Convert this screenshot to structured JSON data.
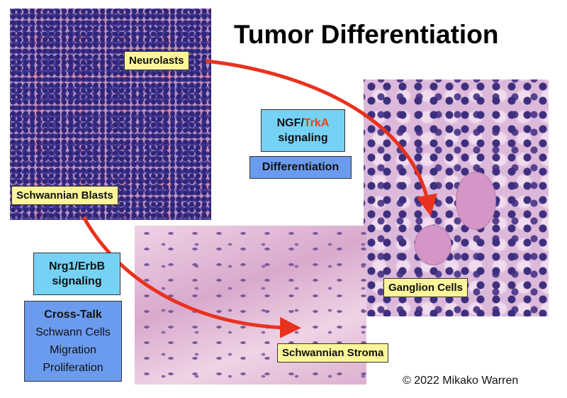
{
  "title": "Tumor Differentiation",
  "labels": {
    "neuroblasts": "Neurolasts",
    "schwannian_blasts": "Schwannian Blasts",
    "ganglion_cells": "Ganglion Cells",
    "schwannian_stroma": "Schwannian Stroma"
  },
  "ngf_box": {
    "part1": "NGF/",
    "part2": "TrkA",
    "line2": "signaling",
    "part2_color": "#e8401c"
  },
  "differentiation": "Differentiation",
  "nrg_box": {
    "line1": "Nrg1/ErbB",
    "line2": "signaling"
  },
  "crosstalk": {
    "title": "Cross-Talk",
    "items": [
      "Schwann Cells",
      "Migration",
      "Proliferation"
    ]
  },
  "copyright": "© 2022 Mikako Warren",
  "colors": {
    "arrow": "#e8321e",
    "label_bg": "#fdf59a",
    "light_blue": "#76d2f5",
    "blue": "#6b9bef"
  }
}
